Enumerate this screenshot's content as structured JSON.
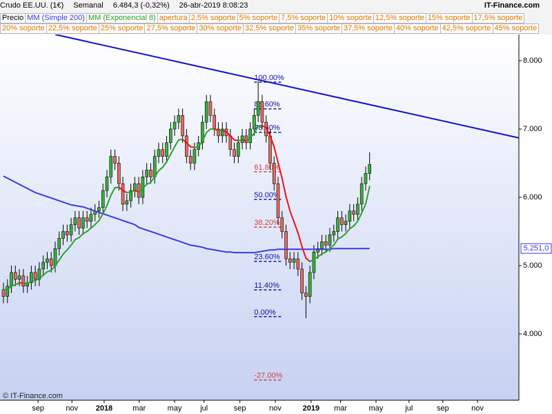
{
  "header": {
    "title": "Crudo EE.UU. (1€)",
    "period": "Semanal",
    "quote": "6.484,3 (-0,32%)",
    "datetime": "26-abr-2019 8:08:23",
    "source": "IT-Finance.com"
  },
  "chart_data": {
    "type": "candlestick",
    "legend": [
      {
        "name": "Precio",
        "color": "#000000"
      }
    ],
    "indicator_rows": [
      [
        "apertura",
        "2,5% soporte",
        "5% soporte",
        "7,5% soporte",
        "10% soporte",
        "12,5% soporte",
        "15% soporte",
        "17,5% soporte"
      ],
      [
        "20% soporte",
        "22,5% soporte",
        "25% soporte",
        "27,5% soporte",
        "30% soporte",
        "32,5% soporte",
        "35% soporte",
        "37,5% soporte",
        "40% soporte",
        "42,5% soporte",
        "45% soporte"
      ]
    ],
    "indicator_color": "#e07b00",
    "up_color": "#3cb03c",
    "down_color": "#e86a64",
    "open": [
      4.65,
      4.55,
      4.7,
      4.9,
      4.8,
      4.85,
      4.7,
      4.75,
      4.9,
      4.8,
      4.95,
      5.05,
      5.1,
      5.0,
      5.25,
      5.4,
      5.5,
      5.45,
      5.6,
      5.7,
      5.55,
      5.7,
      5.65,
      5.75,
      5.8,
      5.85,
      6.1,
      6.3,
      6.6,
      6.5,
      6.2,
      5.9,
      5.95,
      6.1,
      6.2,
      6.0,
      6.3,
      6.4,
      6.3,
      6.6,
      6.7,
      6.6,
      6.8,
      7.0,
      7.1,
      7.2,
      6.9,
      6.6,
      6.5,
      6.7,
      6.8,
      7.1,
      7.4,
      7.2,
      7.0,
      6.9,
      7.0,
      6.9,
      6.7,
      6.6,
      6.8,
      6.9,
      6.8,
      7.0,
      7.2,
      7.4,
      7.1,
      6.9,
      6.5,
      6.2,
      5.7,
      5.5,
      5.1,
      5.05,
      5.1,
      4.95,
      4.6,
      4.55,
      4.9,
      5.2,
      5.25,
      5.35,
      5.3,
      5.45,
      5.5,
      5.7,
      5.6,
      5.65,
      5.8,
      5.75,
      5.9,
      6.2,
      6.35
    ],
    "high": [
      4.75,
      4.8,
      5.0,
      5.0,
      4.95,
      4.95,
      4.85,
      5.0,
      5.0,
      5.05,
      5.15,
      5.2,
      5.2,
      5.35,
      5.5,
      5.6,
      5.6,
      5.7,
      5.8,
      5.8,
      5.8,
      5.8,
      5.85,
      5.9,
      5.95,
      6.2,
      6.4,
      6.7,
      6.7,
      6.6,
      6.3,
      6.05,
      6.2,
      6.3,
      6.3,
      6.4,
      6.5,
      6.5,
      6.7,
      6.8,
      6.8,
      6.9,
      7.1,
      7.2,
      7.3,
      7.3,
      7.0,
      6.7,
      6.8,
      6.9,
      7.2,
      7.5,
      7.5,
      7.3,
      7.1,
      7.1,
      7.1,
      7.0,
      6.8,
      6.9,
      7.0,
      7.0,
      7.1,
      7.3,
      7.7,
      7.5,
      7.2,
      7.0,
      6.6,
      6.3,
      5.8,
      5.6,
      5.2,
      5.2,
      5.2,
      5.05,
      4.7,
      5.0,
      5.3,
      5.35,
      5.45,
      5.45,
      5.55,
      5.6,
      5.8,
      5.8,
      5.75,
      5.9,
      5.9,
      6.0,
      6.3,
      6.45,
      6.66
    ],
    "low": [
      4.45,
      4.45,
      4.6,
      4.7,
      4.7,
      4.6,
      4.6,
      4.65,
      4.7,
      4.7,
      4.85,
      4.95,
      4.9,
      4.9,
      5.15,
      5.3,
      5.35,
      5.35,
      5.5,
      5.45,
      5.45,
      5.55,
      5.55,
      5.65,
      5.7,
      5.75,
      6.0,
      6.2,
      6.4,
      6.1,
      5.8,
      5.8,
      5.85,
      6.0,
      5.9,
      5.9,
      6.2,
      6.2,
      6.2,
      6.5,
      6.5,
      6.5,
      6.7,
      6.9,
      7.0,
      6.8,
      6.5,
      6.4,
      6.4,
      6.6,
      6.7,
      7.0,
      7.1,
      6.9,
      6.8,
      6.8,
      6.8,
      6.6,
      6.5,
      6.5,
      6.7,
      6.7,
      6.7,
      6.9,
      7.1,
      7.0,
      6.8,
      6.4,
      6.1,
      5.6,
      5.4,
      5.0,
      4.95,
      4.95,
      4.85,
      4.5,
      4.23,
      4.45,
      4.8,
      5.1,
      5.15,
      5.2,
      5.2,
      5.35,
      5.4,
      5.5,
      5.5,
      5.55,
      5.65,
      5.65,
      5.8,
      6.1,
      6.25
    ],
    "close": [
      4.55,
      4.7,
      4.9,
      4.8,
      4.85,
      4.7,
      4.75,
      4.9,
      4.8,
      4.95,
      5.05,
      5.1,
      5.0,
      5.25,
      5.4,
      5.5,
      5.45,
      5.6,
      5.7,
      5.55,
      5.7,
      5.65,
      5.75,
      5.8,
      5.85,
      6.1,
      6.3,
      6.6,
      6.5,
      6.2,
      5.9,
      5.95,
      6.1,
      6.2,
      6.0,
      6.3,
      6.4,
      6.3,
      6.6,
      6.7,
      6.6,
      6.8,
      7.0,
      7.1,
      7.2,
      6.9,
      6.6,
      6.5,
      6.7,
      6.8,
      7.1,
      7.4,
      7.2,
      7.0,
      6.9,
      7.0,
      6.9,
      6.7,
      6.6,
      6.8,
      6.9,
      6.8,
      7.0,
      7.2,
      7.4,
      7.1,
      6.9,
      6.5,
      6.2,
      5.7,
      5.5,
      5.1,
      5.05,
      5.1,
      4.95,
      4.6,
      4.55,
      4.9,
      5.2,
      5.25,
      5.35,
      5.3,
      5.45,
      5.5,
      5.7,
      5.6,
      5.65,
      5.8,
      5.75,
      5.9,
      6.2,
      6.35,
      6.48
    ],
    "series": [
      {
        "name": "MM (Simple 200)",
        "color": "#3a3ae0",
        "values": [
          6.31,
          6.28,
          6.25,
          6.22,
          6.19,
          6.16,
          6.13,
          6.1,
          6.07,
          6.05,
          6.03,
          6.01,
          5.99,
          5.97,
          5.95,
          5.93,
          5.91,
          5.89,
          5.88,
          5.87,
          5.86,
          5.84,
          5.82,
          5.8,
          5.78,
          5.76,
          5.74,
          5.72,
          5.7,
          5.68,
          5.66,
          5.64,
          5.62,
          5.6,
          5.56,
          5.54,
          5.52,
          5.5,
          5.48,
          5.46,
          5.44,
          5.42,
          5.4,
          5.38,
          5.36,
          5.34,
          5.32,
          5.3,
          5.29,
          5.28,
          5.27,
          5.25,
          5.24,
          5.23,
          5.22,
          5.21,
          5.2,
          5.2,
          5.19,
          5.19,
          5.19,
          5.19,
          5.19,
          5.19,
          5.2,
          5.21,
          5.22,
          5.23,
          5.23,
          5.24,
          5.24,
          5.24,
          5.24,
          5.24,
          5.24,
          5.24,
          5.24,
          5.24,
          5.24,
          5.24,
          5.24,
          5.24,
          5.24,
          5.25,
          5.25,
          5.25,
          5.25,
          5.25,
          5.25,
          5.25,
          5.25,
          5.25,
          5.251
        ]
      },
      {
        "name": "MM (Exponencial 8)",
        "color": "#2ca02c",
        "down_color": "#ee1111",
        "values": [
          4.65,
          4.65,
          4.7,
          4.72,
          4.75,
          4.74,
          4.74,
          4.77,
          4.78,
          4.81,
          4.86,
          4.91,
          4.93,
          5.0,
          5.08,
          5.17,
          5.23,
          5.3,
          5.38,
          5.41,
          5.47,
          5.5,
          5.55,
          5.6,
          5.66,
          5.76,
          5.88,
          6.03,
          6.14,
          6.15,
          6.1,
          6.07,
          6.08,
          6.1,
          6.08,
          6.13,
          6.19,
          6.22,
          6.3,
          6.39,
          6.44,
          6.52,
          6.63,
          6.74,
          6.84,
          6.85,
          6.8,
          6.74,
          6.73,
          6.74,
          6.82,
          6.95,
          7.0,
          7.0,
          6.98,
          6.98,
          6.96,
          6.9,
          6.84,
          6.83,
          6.84,
          6.83,
          6.87,
          6.94,
          7.04,
          7.05,
          7.02,
          6.9,
          6.74,
          6.51,
          6.28,
          6.01,
          5.8,
          5.64,
          5.48,
          5.28,
          5.11,
          5.06,
          5.09,
          5.13,
          5.17,
          5.2,
          5.25,
          5.3,
          5.39,
          5.42,
          5.47,
          5.54,
          5.58,
          5.65,
          5.77,
          5.9,
          6.16
        ]
      }
    ],
    "last_label": "5.251,0",
    "trendline": {
      "color": "#1010cc",
      "points": [
        [
          13,
          8.384
        ],
        [
          129.5,
          6.87
        ]
      ]
    },
    "fibonacci": {
      "high": 7.687,
      "low": 4.253,
      "start": 63,
      "end": 70,
      "levels": [
        {
          "value": 100,
          "label": "100.00%",
          "color": "#1010a0"
        },
        {
          "value": 88.6,
          "label": "88.60%",
          "color": "#1010a0"
        },
        {
          "value": 78.6,
          "label": "78.60%",
          "color": "#1010a0"
        },
        {
          "value": 61.8,
          "label": "61.80%",
          "color": "#d04040"
        },
        {
          "value": 50,
          "label": "50.00%",
          "color": "#1010a0"
        },
        {
          "value": 38.2,
          "label": "38.20%",
          "color": "#d04040"
        },
        {
          "value": 23.6,
          "label": "23.60%",
          "color": "#1010a0"
        },
        {
          "value": 11.4,
          "label": "11.40%",
          "color": "#1010a0"
        },
        {
          "value": 0,
          "label": "0.00%",
          "color": "#1010a0"
        },
        {
          "value": -27,
          "label": "-27.00%",
          "color": "#d04040"
        }
      ]
    },
    "xlim": [
      -0.87,
      129.5
    ],
    "xticks": [
      {
        "value": 8.7,
        "label": "sep"
      },
      {
        "value": 17.2,
        "label": "nov"
      },
      {
        "value": 25.3,
        "label": "2018"
      },
      {
        "value": 34.1,
        "label": "mar"
      },
      {
        "value": 43,
        "label": "may"
      },
      {
        "value": 50.4,
        "label": "jul"
      },
      {
        "value": 59.4,
        "label": "sep"
      },
      {
        "value": 68.3,
        "label": "nov"
      },
      {
        "value": 77.3,
        "label": "2019"
      },
      {
        "value": 84.7,
        "label": "mar"
      },
      {
        "value": 93.6,
        "label": "may"
      },
      {
        "value": 101.9,
        "label": "jul"
      },
      {
        "value": 110.4,
        "label": "sep"
      },
      {
        "value": 119.1,
        "label": "nov"
      }
    ],
    "ylim": [
      3.03,
      8.384
    ],
    "yticks": [
      {
        "value": 4,
        "label": "4.000"
      },
      {
        "value": 5,
        "label": "5.000"
      },
      {
        "value": 6,
        "label": "6.000"
      },
      {
        "value": 7,
        "label": "7.000"
      },
      {
        "value": 8,
        "label": "8.000"
      }
    ],
    "footer": "© IT-Finance.com"
  }
}
